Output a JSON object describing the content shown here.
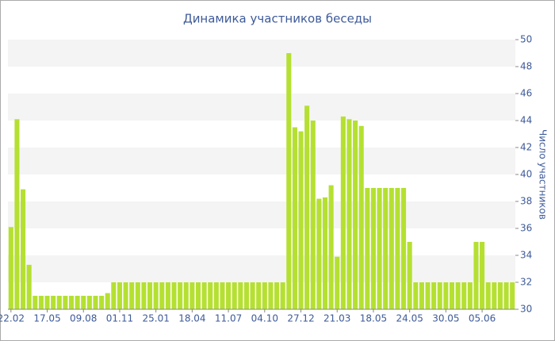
{
  "chart_data": {
    "type": "bar",
    "title": "Динамика участников беседы",
    "y_axis_label": "Число участников",
    "categories": [
      "22.02",
      null,
      null,
      null,
      null,
      null,
      "17.05",
      null,
      null,
      null,
      null,
      null,
      "09.08",
      null,
      null,
      null,
      null,
      null,
      "01.11",
      null,
      null,
      null,
      null,
      null,
      "25.01",
      null,
      null,
      null,
      null,
      null,
      "18.04",
      null,
      null,
      null,
      null,
      null,
      "11.07",
      null,
      null,
      null,
      null,
      null,
      "04.10",
      null,
      null,
      null,
      null,
      null,
      "27.12",
      null,
      null,
      null,
      null,
      null,
      "21.03",
      null,
      null,
      null,
      null,
      null,
      "18.05",
      null,
      null,
      null,
      null,
      null,
      "24.05",
      null,
      null,
      null,
      null,
      null,
      "30.05",
      null,
      null,
      null,
      null,
      null,
      "05.06",
      null,
      null,
      null,
      null,
      null
    ],
    "values": [
      36.1,
      44.1,
      38.9,
      33.3,
      31,
      31,
      31,
      31,
      31,
      31,
      31,
      31,
      31,
      31,
      31,
      31,
      31.2,
      32,
      32,
      32,
      32,
      32,
      32,
      32,
      32,
      32,
      32,
      32,
      32,
      32,
      32,
      32,
      32,
      32,
      32,
      32,
      32,
      32,
      32,
      32,
      32,
      32,
      32,
      32,
      32,
      32,
      49,
      43.5,
      43.2,
      45.1,
      44,
      38.2,
      38.3,
      39.2,
      33.9,
      44.3,
      44.1,
      44,
      43.6,
      39,
      39,
      39,
      39,
      39,
      39,
      39,
      35,
      32,
      32,
      32,
      32,
      32,
      32,
      32,
      32,
      32,
      32,
      35,
      35,
      32,
      32,
      32,
      32,
      32
    ],
    "color": "#b5e032",
    "ylim": [
      30,
      50
    ],
    "yticks": [
      30,
      32,
      34,
      36,
      38,
      40,
      42,
      44,
      46,
      48,
      50
    ],
    "grid": "bands",
    "axis_side": "right"
  }
}
